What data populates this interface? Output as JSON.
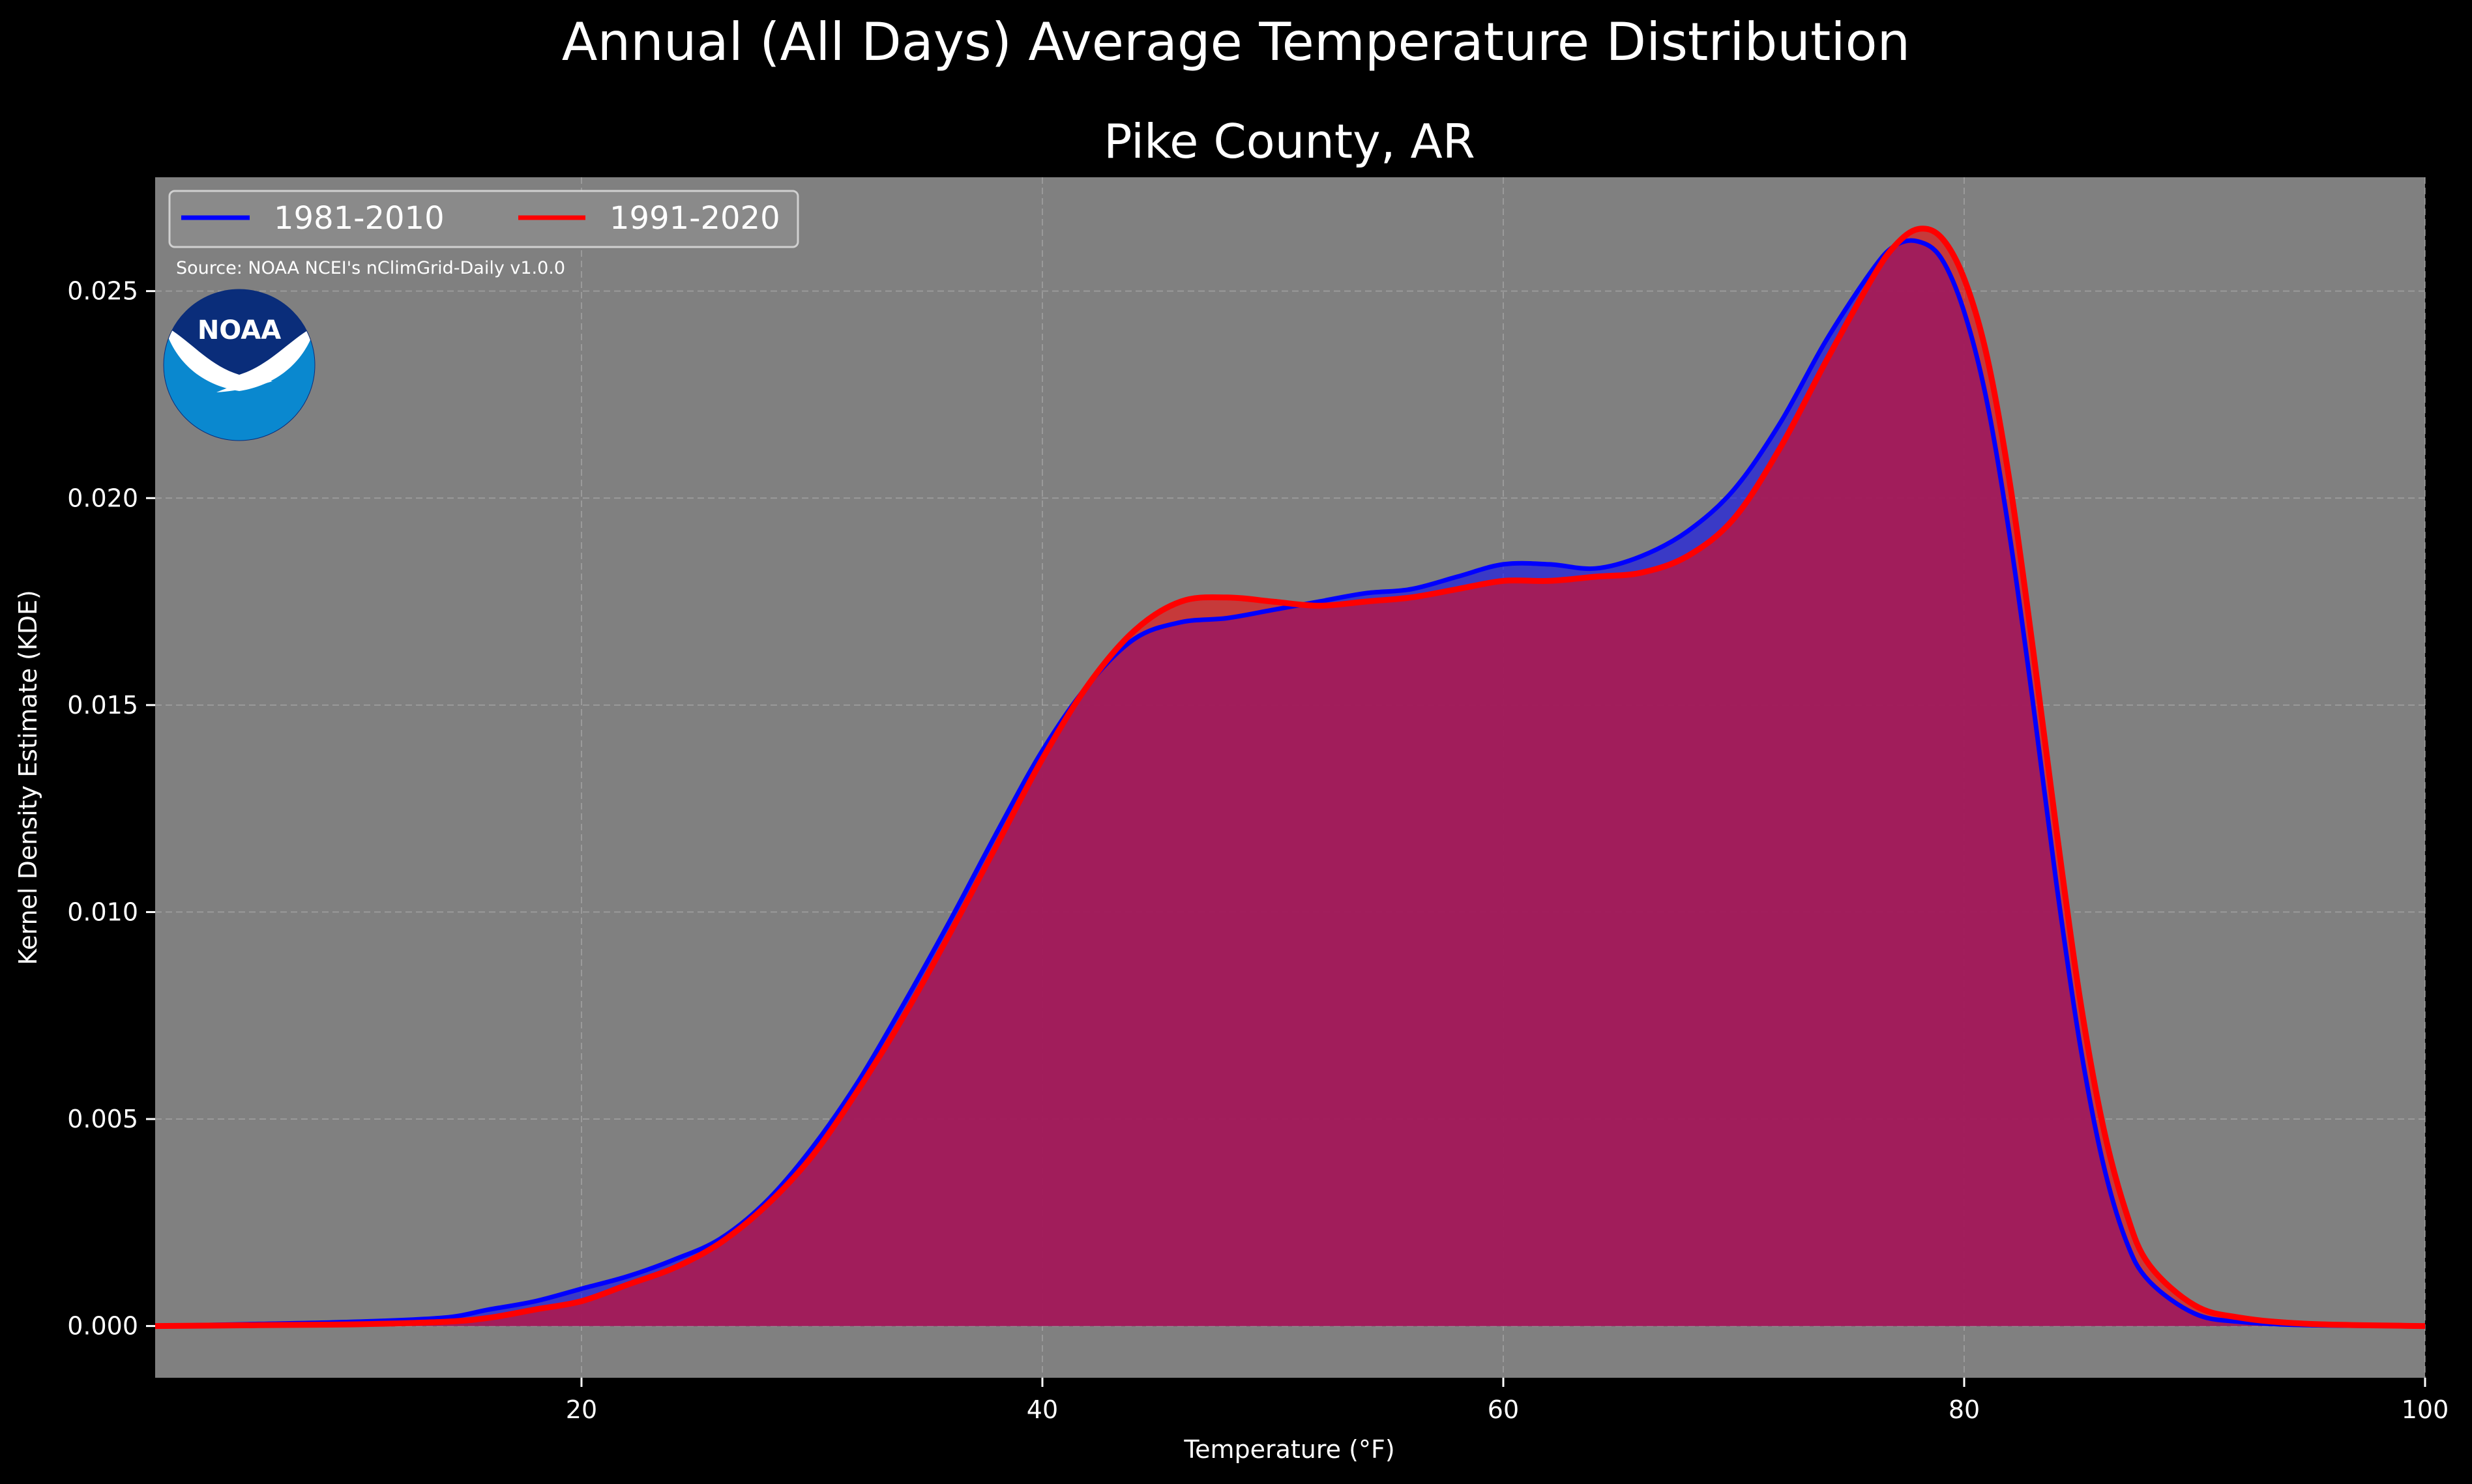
{
  "suptitle": "Annual (All Days) Average Temperature Distribution",
  "source": "Source: NOAA NCEI's nClimGrid-Daily v1.0.0",
  "logo": {
    "icon": "noaa-logo",
    "text": "NOAA",
    "colors": {
      "top": "#0a2d7a",
      "bottom": "#0a88cf",
      "bird": "#ffffff"
    }
  },
  "colors": {
    "background": "#000000",
    "plot_bg": "#808080",
    "series_1": "#0000ff",
    "series_2": "#ff0000",
    "overlap_fill": "#a01e5c"
  },
  "chart_data": {
    "type": "area",
    "title": "Pike County, AR",
    "xlabel": "Temperature (°F)",
    "ylabel": "Kernel Density Estimate (KDE)",
    "xlim": [
      1.5,
      100
    ],
    "ylim": [
      -0.00125,
      0.02775
    ],
    "xticks": [
      20,
      40,
      60,
      80,
      100
    ],
    "yticks": [
      0.0,
      0.005,
      0.01,
      0.015,
      0.02,
      0.025
    ],
    "xtick_labels": [
      "20",
      "40",
      "60",
      "80",
      "100"
    ],
    "ytick_labels": [
      "0.000",
      "0.005",
      "0.010",
      "0.015",
      "0.020",
      "0.025"
    ],
    "grid": true,
    "legend": {
      "position": "top-left",
      "columns": 2
    },
    "series": [
      {
        "name": "1981-2010",
        "color": "#0000ff",
        "x": [
          1.5,
          6,
          10,
          14,
          16,
          18,
          20,
          22,
          24,
          26,
          28,
          30,
          32,
          34,
          36,
          38,
          40,
          42,
          44,
          46,
          48,
          50,
          52,
          54,
          56,
          58,
          60,
          62,
          64,
          66,
          68,
          70,
          72,
          74,
          76,
          77,
          78,
          79,
          80,
          81,
          82,
          83,
          84,
          85,
          86,
          87,
          88,
          90,
          92,
          95,
          100
        ],
        "y": [
          0.0,
          5e-05,
          0.0001,
          0.0002,
          0.0004,
          0.0006,
          0.0009,
          0.0012,
          0.0016,
          0.0021,
          0.003,
          0.0043,
          0.0059,
          0.0078,
          0.0098,
          0.0119,
          0.0139,
          0.0155,
          0.0166,
          0.017,
          0.0171,
          0.0173,
          0.0175,
          0.0177,
          0.0178,
          0.0181,
          0.0184,
          0.0184,
          0.0183,
          0.0186,
          0.0192,
          0.0202,
          0.0218,
          0.0238,
          0.0255,
          0.0261,
          0.0262,
          0.0258,
          0.0245,
          0.0223,
          0.019,
          0.015,
          0.0107,
          0.0069,
          0.004,
          0.0021,
          0.0011,
          0.0003,
          0.0001,
          2e-05,
          0.0
        ]
      },
      {
        "name": "1991-2020",
        "color": "#ff0000",
        "x": [
          1.5,
          6,
          10,
          14,
          16,
          18,
          20,
          22,
          24,
          26,
          28,
          30,
          32,
          34,
          36,
          38,
          40,
          42,
          44,
          46,
          48,
          50,
          52,
          54,
          56,
          58,
          60,
          62,
          64,
          66,
          68,
          70,
          72,
          74,
          76,
          77,
          78,
          79,
          80,
          81,
          82,
          83,
          84,
          85,
          86,
          87,
          88,
          90,
          92,
          95,
          100
        ],
        "y": [
          0.0,
          2e-05,
          4e-05,
          0.0001,
          0.0002,
          0.0004,
          0.0006,
          0.001,
          0.0014,
          0.002,
          0.0029,
          0.0041,
          0.0057,
          0.0075,
          0.0095,
          0.0116,
          0.0137,
          0.0155,
          0.0168,
          0.0175,
          0.0176,
          0.0175,
          0.0174,
          0.0175,
          0.0176,
          0.0178,
          0.018,
          0.018,
          0.0181,
          0.0182,
          0.0186,
          0.0195,
          0.0212,
          0.0233,
          0.0253,
          0.0261,
          0.0265,
          0.0263,
          0.0253,
          0.0234,
          0.0203,
          0.0163,
          0.012,
          0.008,
          0.0049,
          0.0028,
          0.0015,
          0.0005,
          0.0002,
          5e-05,
          0.0
        ]
      }
    ]
  }
}
